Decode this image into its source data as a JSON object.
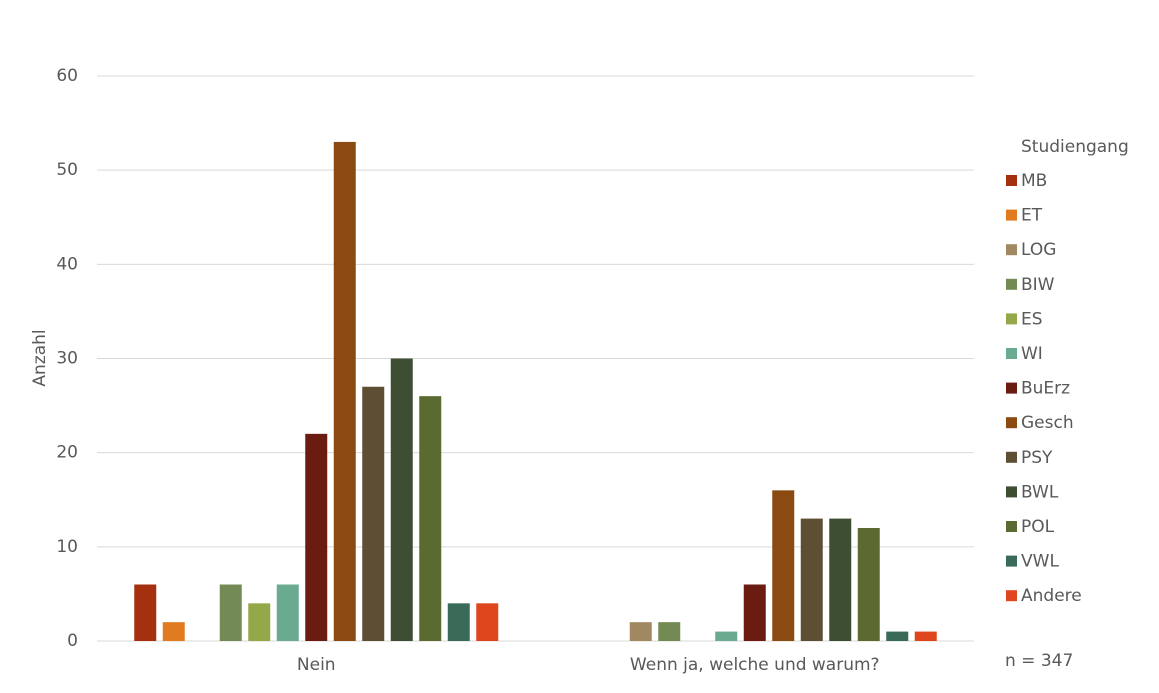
{
  "chart_data": {
    "type": "bar",
    "y_label": "Anzahl",
    "legend_title": "Studiengang",
    "annotation": "n = 347",
    "categories": [
      "Nein",
      "Wenn ja, welche und warum?"
    ],
    "series": [
      {
        "name": "MB",
        "color": "#a5300f",
        "values": [
          6,
          0
        ]
      },
      {
        "name": "ET",
        "color": "#e07b20",
        "values": [
          2,
          0
        ]
      },
      {
        "name": "LOG",
        "color": "#a08860",
        "values": [
          0,
          2
        ]
      },
      {
        "name": "BIW",
        "color": "#748a55",
        "values": [
          6,
          2
        ]
      },
      {
        "name": "ES",
        "color": "#94a84a",
        "values": [
          4,
          0
        ]
      },
      {
        "name": "WI",
        "color": "#6aaa90",
        "values": [
          6,
          1
        ]
      },
      {
        "name": "BuErz",
        "color": "#6a1c10",
        "values": [
          22,
          6
        ]
      },
      {
        "name": "Gesch",
        "color": "#8b4a12",
        "values": [
          53,
          16
        ]
      },
      {
        "name": "PSY",
        "color": "#5e4e33",
        "values": [
          27,
          13
        ]
      },
      {
        "name": "BWL",
        "color": "#3e4e32",
        "values": [
          30,
          13
        ]
      },
      {
        "name": "POL",
        "color": "#5a6a30",
        "values": [
          26,
          12
        ]
      },
      {
        "name": "VWL",
        "color": "#3a6b58",
        "values": [
          4,
          1
        ]
      },
      {
        "name": "Andere",
        "color": "#e0461e",
        "values": [
          4,
          1
        ]
      }
    ],
    "ylim": [
      0,
      60
    ],
    "yticks": [
      0,
      10,
      20,
      30,
      40,
      50,
      60
    ],
    "grid": true,
    "legend": "right"
  }
}
